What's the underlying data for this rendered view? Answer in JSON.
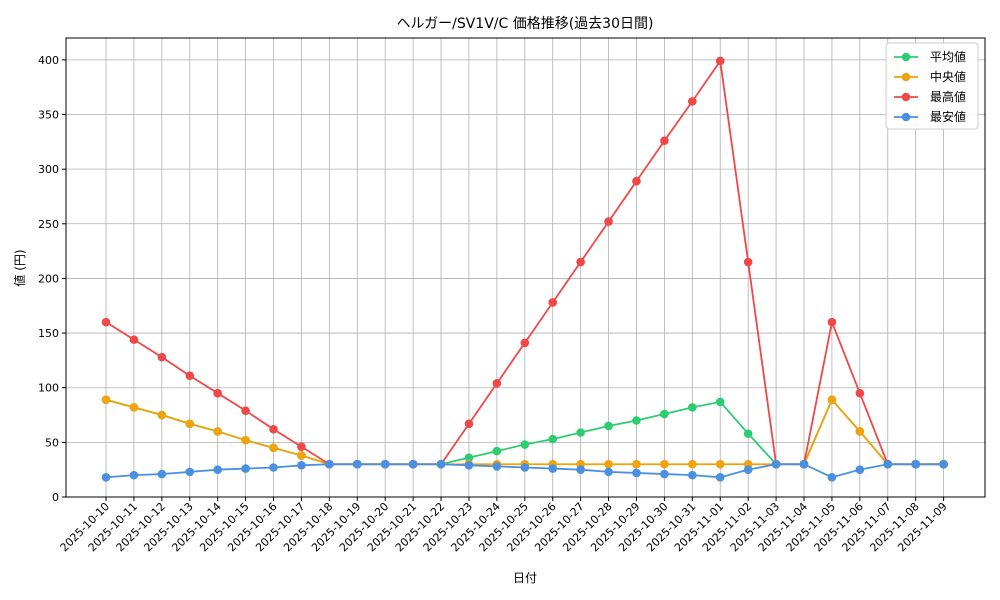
{
  "chart_data": {
    "type": "line",
    "title": "ヘルガー/SV1V/C 価格推移(過去30日間)",
    "xlabel": "日付",
    "ylabel": "値 (円)",
    "ylim": [
      0,
      420
    ],
    "yticks": [
      0,
      50,
      100,
      150,
      200,
      250,
      300,
      350,
      400
    ],
    "grid": true,
    "legend_position": "top-right",
    "categories": [
      "2025-10-10",
      "2025-10-11",
      "2025-10-12",
      "2025-10-13",
      "2025-10-14",
      "2025-10-15",
      "2025-10-16",
      "2025-10-17",
      "2025-10-18",
      "2025-10-19",
      "2025-10-20",
      "2025-10-21",
      "2025-10-22",
      "2025-10-23",
      "2025-10-24",
      "2025-10-25",
      "2025-10-26",
      "2025-10-27",
      "2025-10-28",
      "2025-10-29",
      "2025-10-30",
      "2025-10-31",
      "2025-11-01",
      "2025-11-02",
      "2025-11-03",
      "2025-11-04",
      "2025-11-05",
      "2025-11-06",
      "2025-11-07",
      "2025-11-08",
      "2025-11-09"
    ],
    "series": [
      {
        "name": "平均値",
        "color": "#2ecc71",
        "values": [
          89,
          82,
          75,
          67,
          60,
          52,
          45,
          38,
          30,
          30,
          30,
          30,
          30,
          36,
          42,
          48,
          53,
          59,
          65,
          70,
          76,
          82,
          87,
          58,
          30,
          30,
          89,
          60,
          30,
          30,
          30
        ]
      },
      {
        "name": "中央値",
        "color": "#f0a30a",
        "values": [
          89,
          82,
          75,
          67,
          60,
          52,
          45,
          38,
          30,
          30,
          30,
          30,
          30,
          30,
          30,
          30,
          30,
          30,
          30,
          30,
          30,
          30,
          30,
          30,
          30,
          30,
          89,
          60,
          30,
          30,
          30
        ]
      },
      {
        "name": "最高値",
        "color": "#f04848",
        "values": [
          160,
          144,
          128,
          111,
          95,
          79,
          62,
          46,
          30,
          30,
          30,
          30,
          30,
          67,
          104,
          141,
          178,
          215,
          252,
          289,
          326,
          362,
          399,
          215,
          30,
          30,
          160,
          95,
          30,
          30,
          30
        ]
      },
      {
        "name": "最安値",
        "color": "#4a90e2",
        "values": [
          18,
          20,
          21,
          23,
          25,
          26,
          27,
          29,
          30,
          30,
          30,
          30,
          30,
          29,
          28,
          27,
          26,
          25,
          23,
          22,
          21,
          20,
          18,
          25,
          30,
          30,
          18,
          25,
          30,
          30,
          30
        ]
      }
    ]
  }
}
